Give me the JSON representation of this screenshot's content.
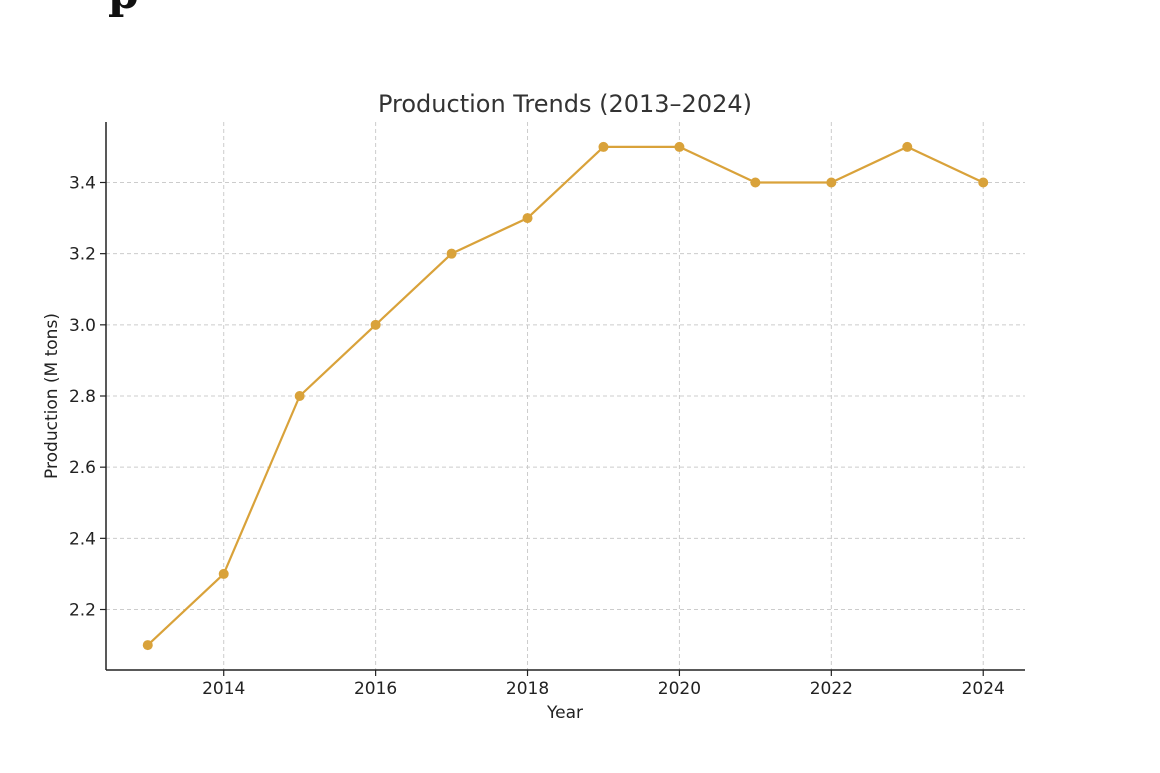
{
  "page": {
    "partial_heading": "p"
  },
  "chart_data": {
    "type": "line",
    "title": "Production Trends (2013–2024)",
    "xlabel": "Year",
    "ylabel": "Production (M tons)",
    "x": [
      2013,
      2014,
      2015,
      2016,
      2017,
      2018,
      2019,
      2020,
      2021,
      2022,
      2023,
      2024
    ],
    "series": [
      {
        "values": [
          2.1,
          2.3,
          2.8,
          3.0,
          3.2,
          3.3,
          3.5,
          3.5,
          3.4,
          3.4,
          3.5,
          3.4
        ],
        "color": "#d9a23a"
      }
    ],
    "xlim": [
      2012.45,
      2024.55
    ],
    "ylim": [
      2.03,
      3.57
    ],
    "xticks": [
      2014,
      2016,
      2018,
      2020,
      2022,
      2024
    ],
    "yticks": [
      2.2,
      2.4,
      2.6,
      2.8,
      3.0,
      3.2,
      3.4
    ],
    "ytick_labels": [
      "2.2",
      "2.4",
      "2.6",
      "2.8",
      "3.0",
      "3.2",
      "3.4"
    ],
    "grid": true,
    "legend": "none"
  }
}
